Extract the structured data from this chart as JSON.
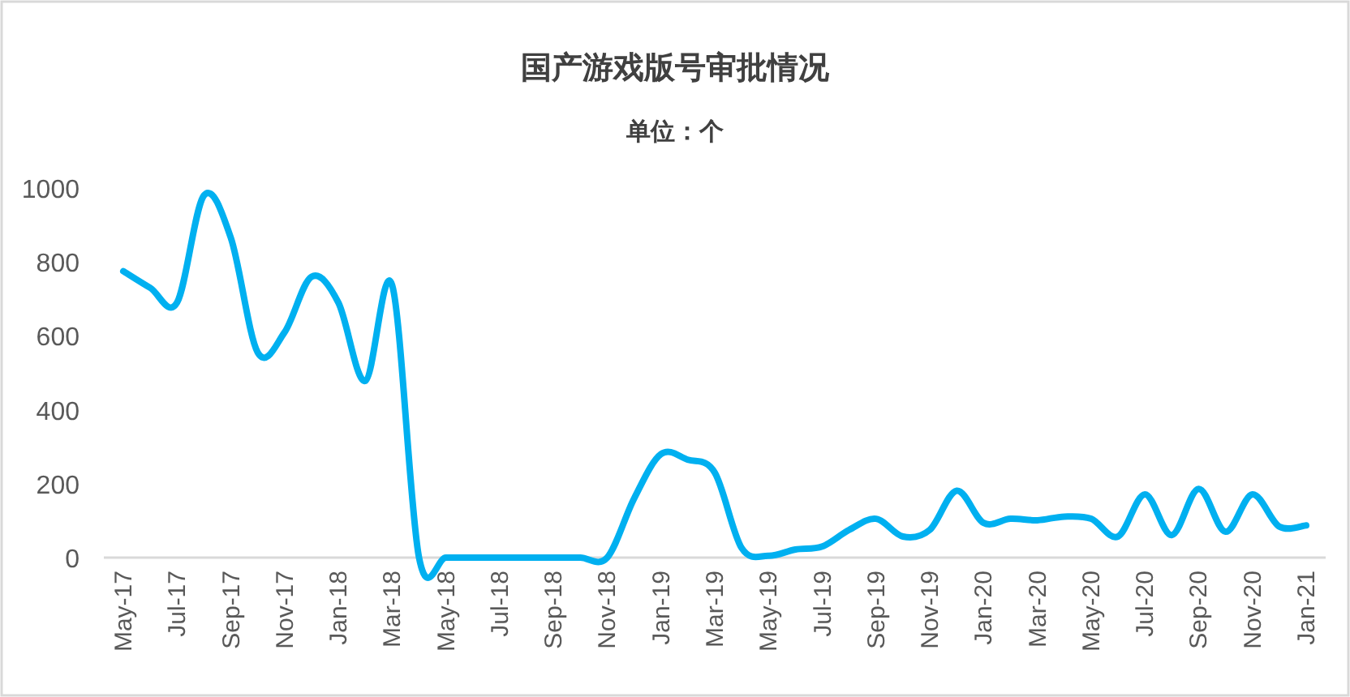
{
  "chart_data": {
    "type": "line",
    "title": "国产游戏版号审批情况",
    "subtitle": "单位：个",
    "categories": [
      "May-17",
      null,
      "Jul-17",
      null,
      "Sep-17",
      null,
      "Nov-17",
      null,
      "Jan-18",
      null,
      "Mar-18",
      null,
      "May-18",
      null,
      "Jul-18",
      null,
      "Sep-18",
      null,
      "Nov-18",
      null,
      "Jan-19",
      null,
      "Mar-19",
      null,
      "May-19",
      null,
      "Jul-19",
      null,
      "Sep-19",
      null,
      "Nov-19",
      null,
      "Jan-20",
      null,
      "Mar-20",
      null,
      "May-20",
      null,
      "Jul-20",
      null,
      "Sep-20",
      null,
      "Nov-20",
      null,
      "Jan-21"
    ],
    "values": [
      775,
      730,
      690,
      980,
      865,
      555,
      610,
      760,
      690,
      478,
      737,
      0,
      0,
      0,
      0,
      0,
      0,
      0,
      0,
      160,
      280,
      265,
      230,
      26,
      5,
      22,
      30,
      75,
      105,
      57,
      75,
      181,
      94,
      105,
      101,
      111,
      105,
      57,
      171,
      61,
      186,
      70,
      171,
      84,
      87
    ],
    "color": "#00b0f0",
    "ylim": [
      0,
      1000
    ],
    "yticks": [
      0,
      200,
      400,
      600,
      800,
      1000
    ]
  }
}
